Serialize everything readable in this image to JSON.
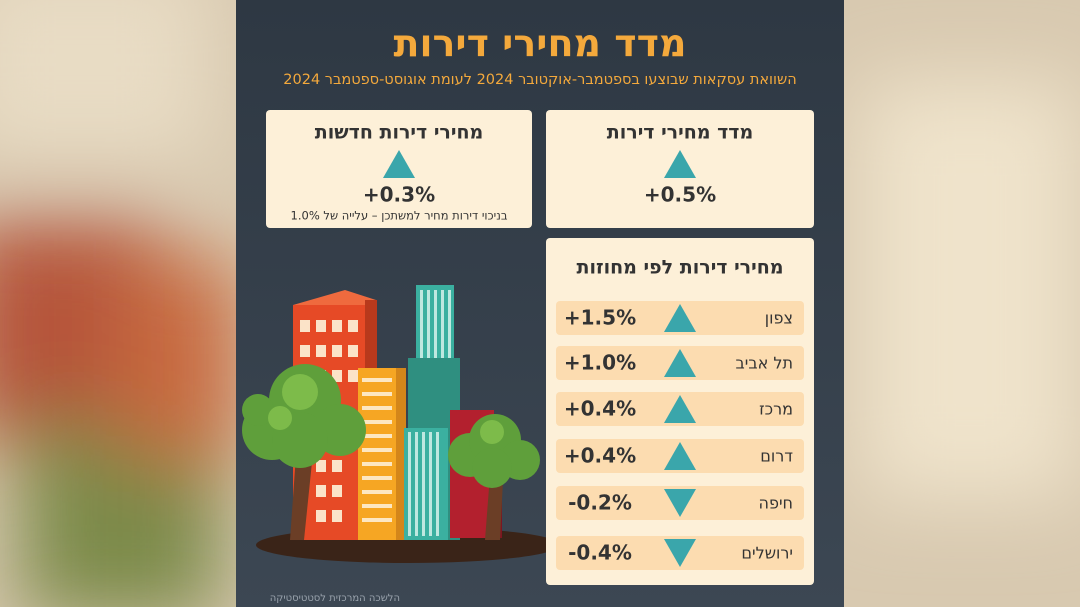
{
  "header": {
    "title": "מדד מחירי דירות",
    "subtitle": "השוואת עסקאות שבוצעו בספטמבר-אוקטובר 2024 לעומת אוגוסט-ספטמבר 2024"
  },
  "cards": [
    {
      "title": "מדד מחירי דירות",
      "change": "+0.5%",
      "direction": "up"
    },
    {
      "title": "מחירי דירות חדשות",
      "change": "+0.3%",
      "direction": "up",
      "note": "בניכוי דירות מחיר למשתכן – עלייה של 1.0%"
    }
  ],
  "regions": {
    "title": "מחירי דירות לפי מחוזות",
    "rows": [
      {
        "name": "צפון",
        "change": "+1.5%",
        "direction": "up"
      },
      {
        "name": "תל אביב",
        "change": "+1.0%",
        "direction": "up"
      },
      {
        "name": "מרכז",
        "change": "+0.4%",
        "direction": "up"
      },
      {
        "name": "דרום",
        "change": "+0.4%",
        "direction": "up"
      },
      {
        "name": "חיפה",
        "change": "-0.2%",
        "direction": "down"
      },
      {
        "name": "ירושלים",
        "change": "-0.4%",
        "direction": "down"
      }
    ]
  },
  "source": "הלשכה המרכזית לסטטיסטיקה"
}
